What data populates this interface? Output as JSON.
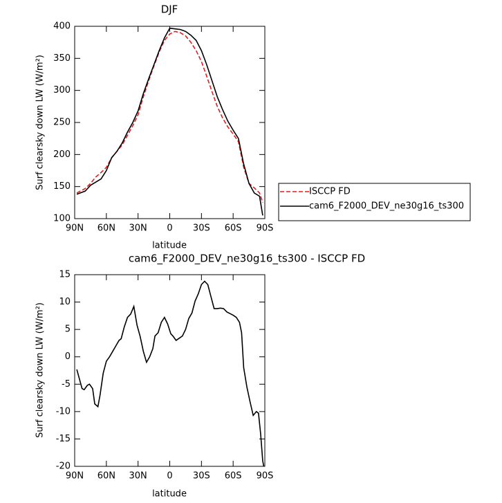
{
  "chart_data": [
    {
      "type": "line",
      "title": "DJF",
      "xlabel": "latitude",
      "ylabel": "Surf clearsky down LW (W/m²)",
      "xlim": [
        90,
        -90
      ],
      "ylim": [
        100,
        400
      ],
      "xticks": [
        {
          "value": 90,
          "label": "90N"
        },
        {
          "value": 60,
          "label": "60N"
        },
        {
          "value": 30,
          "label": "30N"
        },
        0,
        {
          "value": -30,
          "label": "30S"
        },
        {
          "value": -60,
          "label": "60S"
        },
        {
          "value": -90,
          "label": "90S"
        }
      ],
      "yticks": [
        100,
        150,
        200,
        250,
        300,
        350,
        400
      ],
      "x": [
        88,
        80,
        75,
        70,
        65,
        60,
        55,
        50,
        45,
        40,
        35,
        30,
        25,
        20,
        15,
        10,
        5,
        0,
        -5,
        -10,
        -15,
        -20,
        -25,
        -30,
        -35,
        -40,
        -45,
        -50,
        -55,
        -60,
        -65,
        -70,
        -75,
        -80,
        -85,
        -88
      ],
      "legend": "right",
      "series": [
        {
          "name": "ISCCP FD",
          "color": "#e41a1c",
          "dash": true,
          "values": [
            140,
            147,
            155,
            165,
            172,
            180,
            195,
            205,
            215,
            230,
            245,
            262,
            290,
            315,
            338,
            360,
            378,
            388,
            392,
            390,
            385,
            375,
            362,
            345,
            322,
            298,
            275,
            257,
            243,
            232,
            220,
            180,
            155,
            148,
            140,
            125
          ]
        },
        {
          "name": "cam6_F2000_DEV_ne30g16_ts300",
          "color": "#000000",
          "dash": false,
          "values": [
            138,
            143,
            152,
            157,
            162,
            175,
            195,
            205,
            218,
            235,
            250,
            268,
            295,
            318,
            340,
            362,
            382,
            397,
            396,
            395,
            392,
            386,
            378,
            362,
            340,
            315,
            290,
            270,
            252,
            238,
            225,
            185,
            155,
            140,
            135,
            105
          ]
        }
      ]
    },
    {
      "type": "line",
      "title": "cam6_F2000_DEV_ne30g16_ts300 - ISCCP FD",
      "xlabel": "latitude",
      "ylabel": "Surf clearsky down LW (W/m²)",
      "xlim": [
        90,
        -90
      ],
      "ylim": [
        -20,
        15
      ],
      "xticks": [
        {
          "value": 90,
          "label": "90N"
        },
        {
          "value": 60,
          "label": "60N"
        },
        {
          "value": 30,
          "label": "30N"
        },
        0,
        {
          "value": -30,
          "label": "30S"
        },
        {
          "value": -60,
          "label": "60S"
        },
        {
          "value": -90,
          "label": "90S"
        }
      ],
      "yticks": [
        -20,
        -15,
        -10,
        -5,
        0,
        5,
        10,
        15
      ],
      "x": [
        88,
        83,
        81,
        78,
        76,
        73,
        71,
        68,
        66,
        63,
        60,
        57,
        54,
        51,
        48,
        46,
        43,
        40,
        37,
        34,
        31,
        28,
        25,
        22,
        19,
        16,
        14,
        11,
        8,
        5,
        2,
        -1,
        -3,
        -6,
        -9,
        -12,
        -15,
        -18,
        -21,
        -24,
        -27,
        -30,
        -33,
        -36,
        -39,
        -42,
        -45,
        -48,
        -51,
        -54,
        -57,
        -60,
        -63,
        -66,
        -68,
        -70,
        -73,
        -76,
        -79,
        -82,
        -84,
        -86,
        -88,
        -89
      ],
      "color": "#000000",
      "values": [
        -2.3,
        -5.8,
        -6,
        -5.2,
        -5,
        -5.8,
        -8.6,
        -9.1,
        -7,
        -3,
        -0.8,
        0,
        1,
        2,
        3,
        3.3,
        5.5,
        7.2,
        7.8,
        9.2,
        5.8,
        3.7,
        1,
        -1,
        0,
        1.5,
        3.8,
        4.4,
        6.3,
        7.2,
        6,
        4.2,
        3.8,
        3,
        3.4,
        3.8,
        5,
        7,
        8,
        10.2,
        11.5,
        13.2,
        13.8,
        13.2,
        11,
        8.8,
        8.8,
        8.9,
        8.8,
        8.2,
        7.9,
        7.6,
        7.2,
        6.3,
        4.4,
        -2,
        -5.5,
        -8.2,
        -10.7,
        -10,
        -10.3,
        -14,
        -19,
        -20
      ]
    }
  ]
}
